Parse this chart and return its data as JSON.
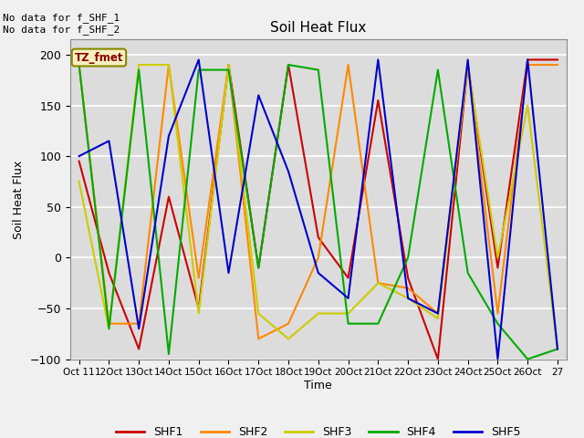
{
  "title": "Soil Heat Flux",
  "ylabel": "Soil Heat Flux",
  "xlabel": "Time",
  "text_upper_left": "No data for f_SHF_1\nNo data for f_SHF_2",
  "legend_label": "TZ_fmet",
  "ylim": [
    -100,
    215
  ],
  "yticks": [
    -100,
    -50,
    0,
    50,
    100,
    150,
    200
  ],
  "plot_bg_color": "#dcdcdc",
  "fig_bg_color": "#f0f0f0",
  "xtick_labels": [
    "Oct 11",
    "12Oct",
    "13Oct",
    "14Oct",
    "15Oct",
    "16Oct",
    "17Oct",
    "18Oct",
    "19Oct",
    "20Oct",
    "21Oct",
    "22Oct",
    "23Oct",
    "24Oct",
    "25Oct",
    "26Oct",
    "27"
  ],
  "series_order": [
    "SHF1",
    "SHF2",
    "SHF3",
    "SHF4",
    "SHF5"
  ],
  "series": {
    "SHF1": {
      "color": "#cc0000",
      "y": [
        95,
        -15,
        -90,
        60,
        -50,
        190,
        -10,
        190,
        20,
        -20,
        155,
        -20,
        -100,
        190,
        -10,
        195,
        195
      ]
    },
    "SHF2": {
      "color": "#ff8800",
      "y": [
        190,
        -65,
        -65,
        190,
        -20,
        190,
        -80,
        -65,
        0,
        190,
        -25,
        -30,
        -55,
        190,
        -55,
        190,
        190
      ]
    },
    "SHF3": {
      "color": "#cccc00",
      "y": [
        75,
        -70,
        190,
        190,
        -55,
        190,
        -55,
        -80,
        -55,
        -55,
        -25,
        -40,
        -60,
        190,
        0,
        150,
        -90
      ]
    },
    "SHF4": {
      "color": "#00aa00",
      "y": [
        190,
        -70,
        185,
        -95,
        185,
        185,
        -10,
        190,
        185,
        -65,
        -65,
        0,
        185,
        -15,
        -65,
        -100,
        -90
      ]
    },
    "SHF5": {
      "color": "#0000cc",
      "y": [
        100,
        115,
        -70,
        120,
        195,
        -15,
        160,
        85,
        -15,
        -40,
        195,
        -40,
        -55,
        195,
        -100,
        195,
        -90
      ]
    }
  }
}
